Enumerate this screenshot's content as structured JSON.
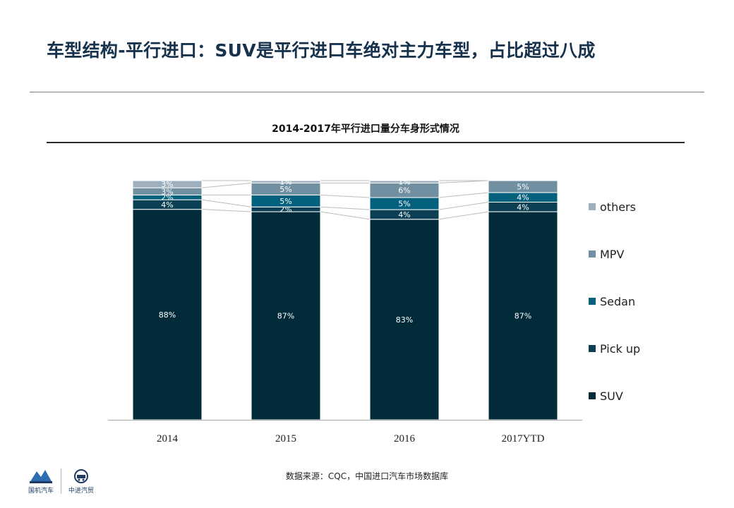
{
  "page": {
    "title": "车型结构-平行进口：SUV是平行进口车绝对主力车型，占比超过八成",
    "source": "数据来源：CQC，中国进口汽车市场数据库"
  },
  "footer": {
    "logo_left": "国机汽车",
    "logo_right": "中进汽贸"
  },
  "chart_data": {
    "type": "bar",
    "stacked": true,
    "title": "2014-2017年平行进口量分车身形式情况",
    "categories": [
      "2014",
      "2015",
      "2016",
      "2017YTD"
    ],
    "series": [
      {
        "name": "SUV",
        "color": "#022b3a",
        "values": [
          88,
          87,
          83,
          87
        ],
        "labels": [
          "88%",
          "87%",
          "83%",
          "87%"
        ]
      },
      {
        "name": "Pick up",
        "color": "#0b3f54",
        "values": [
          4,
          2,
          4,
          4
        ],
        "labels": [
          "4%",
          "2%",
          "4%",
          "4%"
        ]
      },
      {
        "name": "Sedan",
        "color": "#04617e",
        "values": [
          2,
          5,
          5,
          4
        ],
        "labels": [
          "2%",
          "5%",
          "5%",
          "4%"
        ]
      },
      {
        "name": "MPV",
        "color": "#708fa1",
        "values": [
          3,
          5,
          6,
          5
        ],
        "labels": [
          "3%",
          "5%",
          "6%",
          "5%"
        ]
      },
      {
        "name": "others",
        "color": "#9eb0bd",
        "values": [
          3,
          1,
          1,
          0
        ],
        "labels": [
          "3%",
          "1%",
          "1%",
          ""
        ]
      }
    ],
    "legend_order": [
      "others",
      "MPV",
      "Sedan",
      "Pick up",
      "SUV"
    ],
    "legend_position": "right",
    "connector_lines": true,
    "grid": false
  }
}
